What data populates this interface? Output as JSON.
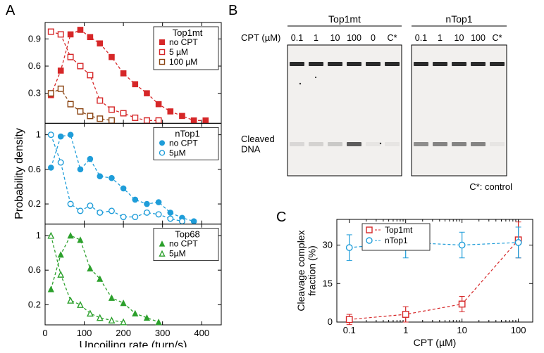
{
  "panelA": {
    "label": "A",
    "ylabel": "Probability density",
    "xlabel": "Uncoiling rate (turn/s)",
    "axis_color": "#000000",
    "tick_fontsize": 13,
    "label_fontsize": 16,
    "charts": [
      {
        "title": "Top1mt",
        "color": "#d62728",
        "xlim": [
          0,
          450
        ],
        "xticks": [
          0,
          100,
          200,
          300,
          400
        ],
        "ylim": [
          0,
          1.05
        ],
        "yticks": [
          0.3,
          0.6,
          0.9
        ],
        "series": [
          {
            "label": "no CPT",
            "marker": "square-filled",
            "data": [
              [
                15,
                0.28
              ],
              [
                40,
                0.55
              ],
              [
                65,
                0.95
              ],
              [
                90,
                1.0
              ],
              [
                115,
                0.92
              ],
              [
                140,
                0.85
              ],
              [
                170,
                0.7
              ],
              [
                200,
                0.52
              ],
              [
                230,
                0.4
              ],
              [
                260,
                0.3
              ],
              [
                290,
                0.18
              ],
              [
                320,
                0.1
              ],
              [
                350,
                0.05
              ],
              [
                380,
                0.0
              ],
              [
                410,
                0.0
              ]
            ]
          },
          {
            "label": "5 µM",
            "marker": "square-open",
            "data": [
              [
                15,
                0.98
              ],
              [
                40,
                0.95
              ],
              [
                65,
                0.7
              ],
              [
                90,
                0.6
              ],
              [
                115,
                0.5
              ],
              [
                140,
                0.22
              ],
              [
                170,
                0.12
              ],
              [
                200,
                0.08
              ],
              [
                230,
                0.03
              ],
              [
                260,
                0.0
              ],
              [
                290,
                0.0
              ]
            ]
          },
          {
            "label": "100 µM",
            "marker": "square-open",
            "color": "#8b4513",
            "data": [
              [
                15,
                0.3
              ],
              [
                40,
                0.35
              ],
              [
                65,
                0.18
              ],
              [
                90,
                0.1
              ],
              [
                115,
                0.05
              ],
              [
                140,
                0.02
              ],
              [
                170,
                0.0
              ]
            ]
          }
        ]
      },
      {
        "title": "nTop1",
        "color": "#1f9dd9",
        "xlim": [
          0,
          450
        ],
        "xticks": [
          0,
          100,
          200,
          300,
          400
        ],
        "ylim": [
          0,
          1.1
        ],
        "yticks": [
          0.2,
          0.6,
          1.0
        ],
        "series": [
          {
            "label": "no CPT",
            "marker": "circle-filled",
            "data": [
              [
                15,
                0.62
              ],
              [
                40,
                0.98
              ],
              [
                65,
                1.0
              ],
              [
                90,
                0.6
              ],
              [
                115,
                0.72
              ],
              [
                140,
                0.52
              ],
              [
                170,
                0.5
              ],
              [
                200,
                0.38
              ],
              [
                230,
                0.25
              ],
              [
                260,
                0.2
              ],
              [
                290,
                0.22
              ],
              [
                320,
                0.1
              ],
              [
                350,
                0.04
              ],
              [
                380,
                0.0
              ]
            ]
          },
          {
            "label": "5µM",
            "marker": "circle-open",
            "data": [
              [
                15,
                1.0
              ],
              [
                40,
                0.68
              ],
              [
                65,
                0.2
              ],
              [
                90,
                0.12
              ],
              [
                115,
                0.18
              ],
              [
                140,
                0.1
              ],
              [
                170,
                0.12
              ],
              [
                200,
                0.05
              ],
              [
                230,
                0.05
              ],
              [
                260,
                0.1
              ],
              [
                290,
                0.08
              ],
              [
                320,
                0.03
              ],
              [
                350,
                0.0
              ]
            ]
          }
        ]
      },
      {
        "title": "Top68",
        "color": "#2ca02c",
        "xlim": [
          0,
          450
        ],
        "xticks": [
          0,
          100,
          200,
          300,
          400
        ],
        "ylim": [
          0,
          1.1
        ],
        "yticks": [
          0.2,
          0.6,
          1.0
        ],
        "series": [
          {
            "label": "no CPT",
            "marker": "triangle-filled",
            "data": [
              [
                15,
                0.38
              ],
              [
                40,
                0.78
              ],
              [
                65,
                1.0
              ],
              [
                90,
                0.95
              ],
              [
                115,
                0.62
              ],
              [
                140,
                0.5
              ],
              [
                170,
                0.28
              ],
              [
                200,
                0.22
              ],
              [
                230,
                0.1
              ],
              [
                260,
                0.05
              ],
              [
                290,
                0.0
              ]
            ]
          },
          {
            "label": "5µM",
            "marker": "triangle-open",
            "data": [
              [
                15,
                1.0
              ],
              [
                40,
                0.55
              ],
              [
                65,
                0.25
              ],
              [
                90,
                0.2
              ],
              [
                115,
                0.1
              ],
              [
                140,
                0.05
              ],
              [
                170,
                0.02
              ],
              [
                200,
                0.0
              ]
            ]
          }
        ]
      }
    ]
  },
  "panelB": {
    "label": "B",
    "row_label": "CPT (µM)",
    "groups": [
      {
        "title": "Top1mt",
        "lanes": [
          "0.1",
          "1",
          "10",
          "100",
          "0",
          "C*"
        ]
      },
      {
        "title": "nTop1",
        "lanes": [
          "0.1",
          "1",
          "10",
          "100",
          "C*"
        ]
      }
    ],
    "cleaved_label": "Cleaved\nDNA",
    "control_note": "C*: control",
    "gel_bg": "#f2f0ee",
    "band_color": "#2b2b2b",
    "border_color": "#000000"
  },
  "panelC": {
    "label": "C",
    "type": "scatter",
    "xlabel": "CPT (µM)",
    "ylabel": "Cleavage complex\nfraction (%)",
    "xscale": "log",
    "xlim": [
      0.06,
      180
    ],
    "xticks": [
      0.1,
      1,
      10,
      100
    ],
    "ylim": [
      0,
      40
    ],
    "yticks": [
      0,
      15,
      30
    ],
    "axis_color": "#000000",
    "label_fontsize": 14,
    "tick_fontsize": 13,
    "series": [
      {
        "label": "Top1mt",
        "color": "#d62728",
        "marker": "square-open",
        "data": [
          [
            0.1,
            1,
            2
          ],
          [
            1,
            3,
            3
          ],
          [
            10,
            7,
            3
          ],
          [
            100,
            32,
            7
          ]
        ]
      },
      {
        "label": "nTop1",
        "color": "#1f9dd9",
        "marker": "circle-open",
        "data": [
          [
            0.1,
            29,
            5
          ],
          [
            1,
            31,
            6
          ],
          [
            10,
            30,
            5
          ],
          [
            100,
            31,
            6
          ]
        ]
      }
    ]
  }
}
